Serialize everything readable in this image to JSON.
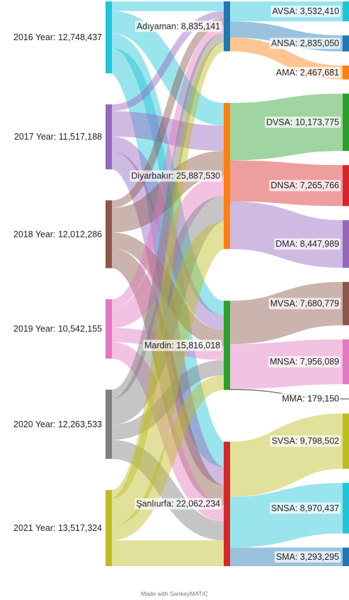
{
  "footer": "Made with SankeyMATIC",
  "chart_data": {
    "type": "sankey",
    "columns": [
      [
        "2016 Year",
        "2017 Year",
        "2018 Year",
        "2019 Year",
        "2020 Year",
        "2021 Year"
      ],
      [
        "Adıyaman",
        "Diyarbakır",
        "Mardin",
        "Şanlıurfa"
      ],
      [
        "AVSA",
        "ANSA",
        "AMA",
        "DVSA",
        "DNSA",
        "DMA",
        "MVSA",
        "MNSA",
        "MMA",
        "SVSA",
        "SNSA",
        "SMA"
      ]
    ],
    "nodes": [
      {
        "name": "2016 Year",
        "value": "12,748,437",
        "color": "#1fc4d8"
      },
      {
        "name": "2017 Year",
        "value": "11,517,188",
        "color": "#9467bd"
      },
      {
        "name": "2018 Year",
        "value": "12,012,286",
        "color": "#8c564b"
      },
      {
        "name": "2019 Year",
        "value": "10,542,155",
        "color": "#e377c2"
      },
      {
        "name": "2020 Year",
        "value": "12,263,533",
        "color": "#7f7f7f"
      },
      {
        "name": "2021 Year",
        "value": "13,517,324",
        "color": "#bcbd22"
      },
      {
        "name": "Adıyaman",
        "value": "8,835,141",
        "color": "#1f77b4"
      },
      {
        "name": "Diyarbakır",
        "value": "25,887,530",
        "color": "#ff7f0e"
      },
      {
        "name": "Mardin",
        "value": "15,816,018",
        "color": "#2ca02c"
      },
      {
        "name": "Şanlıurfa",
        "value": "22,062,234",
        "color": "#d62728"
      },
      {
        "name": "AVSA",
        "value": "3,532,410",
        "color": "#1fc4d8"
      },
      {
        "name": "ANSA",
        "value": "2,835,050",
        "color": "#1f77b4"
      },
      {
        "name": "AMA",
        "value": "2,467,681",
        "color": "#ff7f0e"
      },
      {
        "name": "DVSA",
        "value": "10,173,775",
        "color": "#2ca02c"
      },
      {
        "name": "DNSA",
        "value": "7,265,766",
        "color": "#d62728"
      },
      {
        "name": "DMA",
        "value": "8,447,989",
        "color": "#9467bd"
      },
      {
        "name": "MVSA",
        "value": "7,680,779",
        "color": "#8c564b"
      },
      {
        "name": "MNSA",
        "value": "7,956,089",
        "color": "#e377c2"
      },
      {
        "name": "MMA",
        "value": "179,150",
        "color": "#7f7f7f"
      },
      {
        "name": "SVSA",
        "value": "9,798,502",
        "color": "#bcbd22"
      },
      {
        "name": "SNSA",
        "value": "8,970,437",
        "color": "#1fc4d8"
      },
      {
        "name": "SMA",
        "value": "3,293,295",
        "color": "#1f77b4"
      }
    ],
    "links": [
      {
        "source": "2016 Year",
        "target": "Adıyaman",
        "value": 1700000
      },
      {
        "source": "2016 Year",
        "target": "Diyarbakır",
        "value": 4000000
      },
      {
        "source": "2016 Year",
        "target": "Mardin",
        "value": 2600000
      },
      {
        "source": "2016 Year",
        "target": "Şanlıurfa",
        "value": 4448437
      },
      {
        "source": "2017 Year",
        "target": "Adıyaman",
        "value": 1200000
      },
      {
        "source": "2017 Year",
        "target": "Diyarbakır",
        "value": 4500000
      },
      {
        "source": "2017 Year",
        "target": "Mardin",
        "value": 2600000
      },
      {
        "source": "2017 Year",
        "target": "Şanlıurfa",
        "value": 3217188
      },
      {
        "source": "2018 Year",
        "target": "Adıyaman",
        "value": 1300000
      },
      {
        "source": "2018 Year",
        "target": "Diyarbakır",
        "value": 4400000
      },
      {
        "source": "2018 Year",
        "target": "Mardin",
        "value": 2800000
      },
      {
        "source": "2018 Year",
        "target": "Şanlıurfa",
        "value": 3512286
      },
      {
        "source": "2019 Year",
        "target": "Adıyaman",
        "value": 1500000
      },
      {
        "source": "2019 Year",
        "target": "Diyarbakır",
        "value": 3600000
      },
      {
        "source": "2019 Year",
        "target": "Mardin",
        "value": 2500000
      },
      {
        "source": "2019 Year",
        "target": "Şanlıurfa",
        "value": 2942155
      },
      {
        "source": "2020 Year",
        "target": "Adıyaman",
        "value": 1600000
      },
      {
        "source": "2020 Year",
        "target": "Diyarbakır",
        "value": 4600000
      },
      {
        "source": "2020 Year",
        "target": "Mardin",
        "value": 2700000
      },
      {
        "source": "2020 Year",
        "target": "Şanlıurfa",
        "value": 3363533
      },
      {
        "source": "2021 Year",
        "target": "Adıyaman",
        "value": 1535141
      },
      {
        "source": "2021 Year",
        "target": "Diyarbakır",
        "value": 4787530
      },
      {
        "source": "2021 Year",
        "target": "Mardin",
        "value": 2616018
      },
      {
        "source": "2021 Year",
        "target": "Şanlıurfa",
        "value": 4578635
      },
      {
        "source": "Adıyaman",
        "target": "AVSA",
        "value": 3532410
      },
      {
        "source": "Adıyaman",
        "target": "ANSA",
        "value": 2835050
      },
      {
        "source": "Adıyaman",
        "target": "AMA",
        "value": 2467681
      },
      {
        "source": "Diyarbakır",
        "target": "DVSA",
        "value": 10173775
      },
      {
        "source": "Diyarbakır",
        "target": "DNSA",
        "value": 7265766
      },
      {
        "source": "Diyarbakır",
        "target": "DMA",
        "value": 8447989
      },
      {
        "source": "Mardin",
        "target": "MVSA",
        "value": 7680779
      },
      {
        "source": "Mardin",
        "target": "MNSA",
        "value": 7956089
      },
      {
        "source": "Mardin",
        "target": "MMA",
        "value": 179150
      },
      {
        "source": "Şanlıurfa",
        "target": "SVSA",
        "value": 9798502
      },
      {
        "source": "Şanlıurfa",
        "target": "SNSA",
        "value": 8970437
      },
      {
        "source": "Şanlıurfa",
        "target": "SMA",
        "value": 3293295
      }
    ]
  }
}
